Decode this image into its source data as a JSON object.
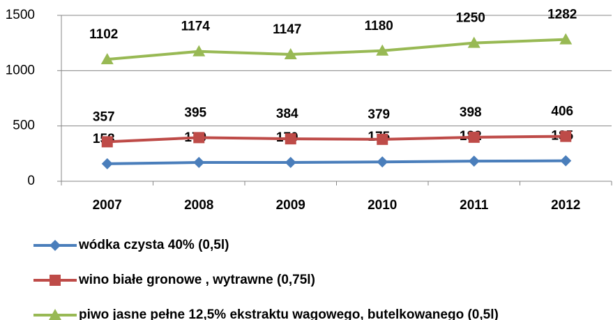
{
  "chart_data": {
    "type": "line",
    "categories": [
      "2007",
      "2008",
      "2009",
      "2010",
      "2011",
      "2012"
    ],
    "series": [
      {
        "name": "wódka czysta 40% (0,5l)",
        "color": "#4a7ebb",
        "marker": "diamond",
        "values": [
          158,
          170,
          170,
          175,
          182,
          185
        ]
      },
      {
        "name": "wino białe gronowe , wytrawne (0,75l)",
        "color": "#be4b48",
        "marker": "square",
        "values": [
          357,
          395,
          384,
          379,
          398,
          406
        ]
      },
      {
        "name": "piwo jasne pełne 12,5% ekstraktu wagowego, butelkowanego (0,5l)",
        "color": "#98b954",
        "marker": "triangle",
        "values": [
          1102,
          1174,
          1147,
          1180,
          1250,
          1282
        ]
      }
    ],
    "ylim": [
      0,
      1500
    ],
    "yticks": [
      0,
      500,
      1000,
      1500
    ],
    "grid": true,
    "legend": "bottom"
  }
}
